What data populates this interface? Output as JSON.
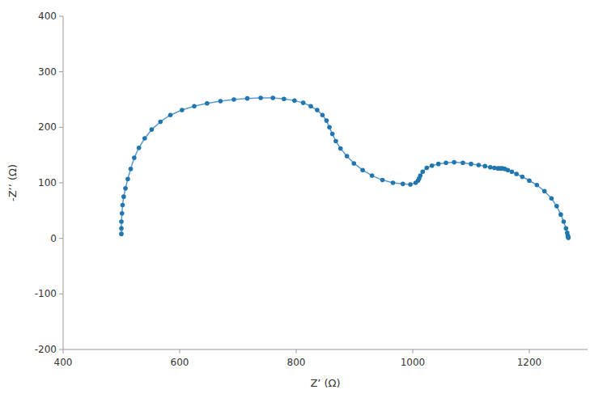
{
  "chart_data": {
    "type": "line",
    "xlabel": "Z’ (Ω)",
    "ylabel": "-Z’’ (Ω)",
    "xlim": [
      400,
      1300
    ],
    "ylim": [
      -200,
      400
    ],
    "xticks": [
      400,
      600,
      800,
      1000,
      1200
    ],
    "yticks": [
      -200,
      -100,
      0,
      100,
      200,
      300,
      400
    ],
    "grid": false,
    "x": [
      500,
      500,
      500,
      501,
      502,
      504,
      507,
      511,
      516,
      522,
      530,
      540,
      552,
      567,
      584,
      604,
      625,
      647,
      670,
      693,
      716,
      739,
      760,
      779,
      797,
      812,
      825,
      836,
      845,
      852,
      857,
      862,
      868,
      876,
      887,
      899,
      914,
      930,
      948,
      966,
      983,
      996,
      1005,
      1009,
      1011,
      1013,
      1017,
      1024,
      1033,
      1044,
      1057,
      1071,
      1086,
      1100,
      1113,
      1124,
      1133,
      1140,
      1146,
      1150,
      1154,
      1158,
      1163,
      1170,
      1178,
      1188,
      1200,
      1213,
      1226,
      1238,
      1247,
      1254,
      1259,
      1263,
      1265,
      1266,
      1267,
      1267
    ],
    "series": [
      {
        "type": "line",
        "color": "#5B9BD5",
        "values": [
          8,
          18,
          30,
          45,
          60,
          75,
          90,
          107,
          125,
          145,
          163,
          180,
          196,
          210,
          222,
          231,
          238,
          243,
          247,
          250,
          252,
          253,
          253,
          251,
          248,
          244,
          238,
          231,
          222,
          212,
          200,
          188,
          175,
          162,
          148,
          135,
          123,
          113,
          105,
          100,
          98,
          97,
          100,
          104,
          108,
          113,
          120,
          127,
          131,
          134,
          136,
          137,
          136,
          134,
          132,
          130,
          128,
          127,
          126,
          126,
          126,
          125,
          123,
          120,
          116,
          111,
          104,
          96,
          85,
          72,
          58,
          43,
          30,
          18,
          10,
          5,
          2,
          1
        ]
      },
      {
        "type": "scatter",
        "color": "#2176AE",
        "marker": "circle",
        "values": [
          8,
          18,
          30,
          45,
          60,
          75,
          90,
          107,
          125,
          145,
          163,
          180,
          196,
          210,
          222,
          231,
          238,
          243,
          247,
          250,
          252,
          253,
          253,
          251,
          248,
          244,
          238,
          231,
          222,
          212,
          200,
          188,
          175,
          162,
          148,
          135,
          123,
          113,
          105,
          100,
          98,
          97,
          100,
          104,
          108,
          113,
          120,
          127,
          131,
          134,
          136,
          137,
          136,
          134,
          132,
          130,
          128,
          127,
          126,
          126,
          126,
          125,
          123,
          120,
          116,
          111,
          104,
          96,
          85,
          72,
          58,
          43,
          30,
          18,
          10,
          5,
          2,
          1
        ]
      }
    ]
  }
}
